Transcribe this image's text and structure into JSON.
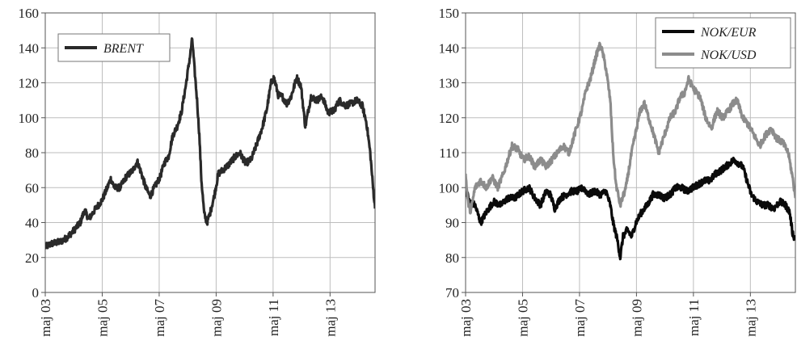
{
  "chart_data": [
    {
      "type": "line",
      "title": "",
      "xlabel": "",
      "ylabel": "",
      "ylim": [
        0,
        160
      ],
      "yticks": [
        0,
        20,
        40,
        60,
        80,
        100,
        120,
        140,
        160
      ],
      "xlim": [
        2003.37,
        2014.95
      ],
      "xticks": [
        {
          "label": "maj 03",
          "x": 2003.37
        },
        {
          "label": "maj 05",
          "x": 2005.37
        },
        {
          "label": "maj 07",
          "x": 2007.37
        },
        {
          "label": "maj 09",
          "x": 2009.37
        },
        {
          "label": "maj 11",
          "x": 2011.37
        },
        {
          "label": "maj 13",
          "x": 2013.37
        }
      ],
      "grid": true,
      "legend_position": "top-left",
      "series": [
        {
          "name": "BRENT",
          "color": "#2a2a2a",
          "points": [
            [
              2003.37,
              26
            ],
            [
              2003.6,
              28
            ],
            [
              2003.9,
              29
            ],
            [
              2004.1,
              31
            ],
            [
              2004.35,
              35
            ],
            [
              2004.6,
              40
            ],
            [
              2004.75,
              47
            ],
            [
              2004.9,
              42
            ],
            [
              2005.1,
              47
            ],
            [
              2005.37,
              53
            ],
            [
              2005.55,
              60
            ],
            [
              2005.67,
              65
            ],
            [
              2005.8,
              60
            ],
            [
              2006.0,
              60
            ],
            [
              2006.2,
              66
            ],
            [
              2006.45,
              70
            ],
            [
              2006.6,
              75
            ],
            [
              2006.75,
              68
            ],
            [
              2006.9,
              60
            ],
            [
              2007.05,
              55
            ],
            [
              2007.2,
              60
            ],
            [
              2007.4,
              66
            ],
            [
              2007.55,
              74
            ],
            [
              2007.7,
              78
            ],
            [
              2007.85,
              90
            ],
            [
              2008.0,
              95
            ],
            [
              2008.15,
              103
            ],
            [
              2008.3,
              118
            ],
            [
              2008.45,
              135
            ],
            [
              2008.53,
              145
            ],
            [
              2008.6,
              130
            ],
            [
              2008.7,
              110
            ],
            [
              2008.78,
              90
            ],
            [
              2008.85,
              65
            ],
            [
              2008.95,
              45
            ],
            [
              2009.05,
              40
            ],
            [
              2009.15,
              45
            ],
            [
              2009.3,
              55
            ],
            [
              2009.45,
              68
            ],
            [
              2009.6,
              70
            ],
            [
              2009.8,
              73
            ],
            [
              2010.0,
              77
            ],
            [
              2010.2,
              80
            ],
            [
              2010.4,
              74
            ],
            [
              2010.6,
              76
            ],
            [
              2010.8,
              85
            ],
            [
              2011.0,
              95
            ],
            [
              2011.15,
              105
            ],
            [
              2011.3,
              120
            ],
            [
              2011.4,
              123
            ],
            [
              2011.55,
              113
            ],
            [
              2011.7,
              112
            ],
            [
              2011.85,
              108
            ],
            [
              2012.0,
              112
            ],
            [
              2012.2,
              123
            ],
            [
              2012.35,
              118
            ],
            [
              2012.5,
              95
            ],
            [
              2012.7,
              112
            ],
            [
              2012.9,
              110
            ],
            [
              2013.1,
              112
            ],
            [
              2013.3,
              103
            ],
            [
              2013.5,
              104
            ],
            [
              2013.7,
              110
            ],
            [
              2013.9,
              107
            ],
            [
              2014.1,
              108
            ],
            [
              2014.3,
              110
            ],
            [
              2014.5,
              107
            ],
            [
              2014.65,
              97
            ],
            [
              2014.78,
              80
            ],
            [
              2014.88,
              60
            ],
            [
              2014.95,
              48
            ]
          ]
        }
      ]
    },
    {
      "type": "line",
      "title": "",
      "xlabel": "",
      "ylabel": "",
      "ylim": [
        70,
        150
      ],
      "yticks": [
        70,
        80,
        90,
        100,
        110,
        120,
        130,
        140,
        150
      ],
      "xlim": [
        2003.37,
        2014.95
      ],
      "xticks": [
        {
          "label": "maj 03",
          "x": 2003.37
        },
        {
          "label": "maj 05",
          "x": 2005.37
        },
        {
          "label": "maj 07",
          "x": 2007.37
        },
        {
          "label": "maj 09",
          "x": 2009.37
        },
        {
          "label": "maj 11",
          "x": 2011.37
        },
        {
          "label": "maj 13",
          "x": 2013.37
        }
      ],
      "grid": true,
      "legend_position": "top-right",
      "series": [
        {
          "name": "NOK/EUR",
          "color": "#0a0a0a",
          "points": [
            [
              2003.37,
              100
            ],
            [
              2003.5,
              96
            ],
            [
              2003.7,
              95
            ],
            [
              2003.9,
              90
            ],
            [
              2004.1,
              93
            ],
            [
              2004.35,
              96
            ],
            [
              2004.6,
              95
            ],
            [
              2004.85,
              97
            ],
            [
              2005.1,
              97
            ],
            [
              2005.37,
              99
            ],
            [
              2005.6,
              100
            ],
            [
              2005.8,
              97
            ],
            [
              2006.0,
              95
            ],
            [
              2006.2,
              99
            ],
            [
              2006.35,
              98
            ],
            [
              2006.5,
              94
            ],
            [
              2006.7,
              97
            ],
            [
              2006.9,
              98
            ],
            [
              2007.1,
              99
            ],
            [
              2007.3,
              99
            ],
            [
              2007.5,
              100
            ],
            [
              2007.7,
              98
            ],
            [
              2007.9,
              99
            ],
            [
              2008.1,
              98
            ],
            [
              2008.3,
              99
            ],
            [
              2008.45,
              95
            ],
            [
              2008.55,
              90
            ],
            [
              2008.7,
              85
            ],
            [
              2008.8,
              80
            ],
            [
              2008.9,
              86
            ],
            [
              2009.05,
              88
            ],
            [
              2009.2,
              86
            ],
            [
              2009.35,
              90
            ],
            [
              2009.55,
              93
            ],
            [
              2009.75,
              95
            ],
            [
              2009.95,
              98
            ],
            [
              2010.15,
              98
            ],
            [
              2010.35,
              97
            ],
            [
              2010.55,
              98
            ],
            [
              2010.75,
              100
            ],
            [
              2010.95,
              100
            ],
            [
              2011.15,
              99
            ],
            [
              2011.35,
              100
            ],
            [
              2011.55,
              101
            ],
            [
              2011.75,
              102
            ],
            [
              2011.95,
              102
            ],
            [
              2012.15,
              104
            ],
            [
              2012.35,
              105
            ],
            [
              2012.5,
              106
            ],
            [
              2012.65,
              107
            ],
            [
              2012.8,
              108
            ],
            [
              2012.95,
              107
            ],
            [
              2013.1,
              106
            ],
            [
              2013.25,
              102
            ],
            [
              2013.4,
              98
            ],
            [
              2013.6,
              96
            ],
            [
              2013.8,
              95
            ],
            [
              2014.0,
              95
            ],
            [
              2014.2,
              94
            ],
            [
              2014.4,
              96
            ],
            [
              2014.6,
              95
            ],
            [
              2014.75,
              93
            ],
            [
              2014.85,
              87
            ],
            [
              2014.95,
              85
            ]
          ]
        },
        {
          "name": "NOK/USD",
          "color": "#8c8c8c",
          "points": [
            [
              2003.37,
              104
            ],
            [
              2003.45,
              96
            ],
            [
              2003.55,
              93
            ],
            [
              2003.7,
              100
            ],
            [
              2003.9,
              102
            ],
            [
              2004.1,
              100
            ],
            [
              2004.3,
              103
            ],
            [
              2004.5,
              100
            ],
            [
              2004.7,
              104
            ],
            [
              2004.85,
              108
            ],
            [
              2005.0,
              112
            ],
            [
              2005.2,
              111
            ],
            [
              2005.4,
              108
            ],
            [
              2005.6,
              109
            ],
            [
              2005.8,
              106
            ],
            [
              2006.0,
              108
            ],
            [
              2006.2,
              106
            ],
            [
              2006.4,
              108
            ],
            [
              2006.6,
              110
            ],
            [
              2006.8,
              112
            ],
            [
              2007.0,
              110
            ],
            [
              2007.15,
              114
            ],
            [
              2007.3,
              118
            ],
            [
              2007.45,
              122
            ],
            [
              2007.6,
              128
            ],
            [
              2007.75,
              131
            ],
            [
              2007.9,
              136
            ],
            [
              2008.0,
              139
            ],
            [
              2008.1,
              141
            ],
            [
              2008.2,
              138
            ],
            [
              2008.3,
              134
            ],
            [
              2008.45,
              125
            ],
            [
              2008.55,
              110
            ],
            [
              2008.65,
              101
            ],
            [
              2008.8,
              95
            ],
            [
              2009.0,
              100
            ],
            [
              2009.2,
              110
            ],
            [
              2009.35,
              116
            ],
            [
              2009.5,
              122
            ],
            [
              2009.65,
              124
            ],
            [
              2009.8,
              120
            ],
            [
              2009.95,
              116
            ],
            [
              2010.15,
              110
            ],
            [
              2010.35,
              115
            ],
            [
              2010.55,
              120
            ],
            [
              2010.75,
              122
            ],
            [
              2010.9,
              126
            ],
            [
              2011.05,
              127
            ],
            [
              2011.2,
              131
            ],
            [
              2011.4,
              128
            ],
            [
              2011.6,
              126
            ],
            [
              2011.8,
              120
            ],
            [
              2012.0,
              117
            ],
            [
              2012.2,
              122
            ],
            [
              2012.4,
              120
            ],
            [
              2012.6,
              122
            ],
            [
              2012.75,
              124
            ],
            [
              2012.9,
              125
            ],
            [
              2013.1,
              120
            ],
            [
              2013.3,
              118
            ],
            [
              2013.5,
              115
            ],
            [
              2013.7,
              112
            ],
            [
              2013.9,
              115
            ],
            [
              2014.1,
              117
            ],
            [
              2014.3,
              114
            ],
            [
              2014.5,
              113
            ],
            [
              2014.7,
              110
            ],
            [
              2014.85,
              103
            ],
            [
              2014.95,
              97
            ]
          ]
        }
      ]
    }
  ]
}
